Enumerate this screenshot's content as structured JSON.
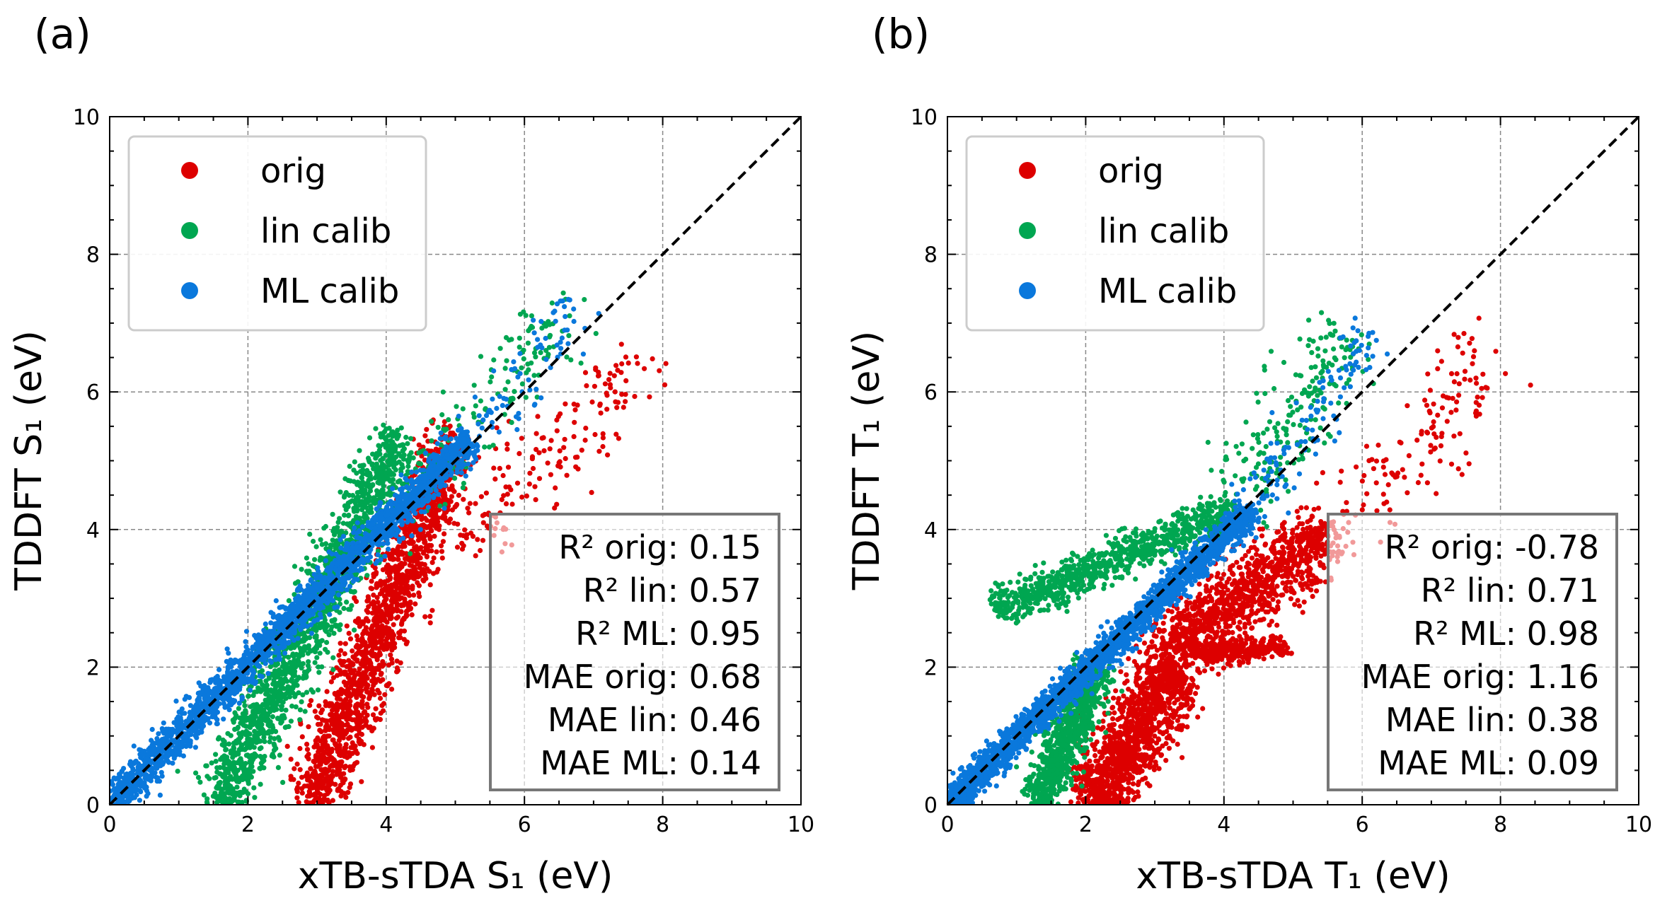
{
  "chart_data": [
    {
      "type": "scatter",
      "panel_label": "(a)",
      "xlabel": "xTB-sTDA S₁ (eV)",
      "ylabel": "TDDFT S₁ (eV)",
      "xlim": [
        0,
        10
      ],
      "ylim": [
        0,
        10
      ],
      "xticks": [
        "0",
        "2",
        "4",
        "6",
        "8",
        "10"
      ],
      "yticks": [
        "0",
        "2",
        "4",
        "6",
        "8",
        "10"
      ],
      "grid": true,
      "legend_placement": "top-left",
      "identity_line": true,
      "series": [
        {
          "name": "orig",
          "color": "#dd0000",
          "clusters": [
            {
              "x0": 2.9,
              "y0": 0.0,
              "x1": 5.0,
              "y1": 5.3,
              "spread": 0.22,
              "count": 1700
            },
            {
              "x0": 5.0,
              "y0": 3.8,
              "x1": 7.8,
              "y1": 6.5,
              "spread": 0.3,
              "count": 170
            }
          ]
        },
        {
          "name": "lin calib",
          "color": "#00a651",
          "clusters": [
            {
              "x0": 1.6,
              "y0": 0.0,
              "x1": 4.2,
              "y1": 5.3,
              "spread": 0.22,
              "count": 1700
            },
            {
              "x0": 4.3,
              "y0": 4.6,
              "x1": 6.8,
              "y1": 7.3,
              "spread": 0.25,
              "count": 150
            }
          ]
        },
        {
          "name": "ML calib",
          "color": "#0a78dc",
          "clusters": [
            {
              "x0": 0.0,
              "y0": 0.0,
              "x1": 5.2,
              "y1": 5.3,
              "spread": 0.12,
              "count": 2300
            },
            {
              "x0": 5.2,
              "y0": 5.2,
              "x1": 6.8,
              "y1": 7.3,
              "spread": 0.2,
              "count": 80
            }
          ]
        }
      ],
      "stats": [
        "R² orig: 0.15",
        "R² lin: 0.57",
        "R² ML: 0.95",
        "MAE orig: 0.68",
        "MAE lin: 0.46",
        "MAE ML: 0.14"
      ]
    },
    {
      "type": "scatter",
      "panel_label": "(b)",
      "xlabel": "xTB-sTDA T₁ (eV)",
      "ylabel": "TDDFT T₁ (eV)",
      "xlim": [
        0,
        10
      ],
      "ylim": [
        0,
        10
      ],
      "xticks": [
        "0",
        "2",
        "4",
        "6",
        "8",
        "10"
      ],
      "yticks": [
        "0",
        "2",
        "4",
        "6",
        "8",
        "10"
      ],
      "grid": true,
      "legend_placement": "top-left",
      "identity_line": true,
      "series": [
        {
          "name": "orig",
          "color": "#dd0000",
          "clusters": [
            {
              "x0": 2.1,
              "y0": 0.0,
              "x1": 3.3,
              "y1": 2.0,
              "spread": 0.25,
              "count": 1400
            },
            {
              "x0": 3.2,
              "y0": 2.2,
              "x1": 5.5,
              "y1": 4.0,
              "spread": 0.25,
              "count": 1100
            },
            {
              "x0": 3.6,
              "y0": 2.2,
              "x1": 4.9,
              "y1": 2.3,
              "spread": 0.1,
              "count": 300
            },
            {
              "x0": 5.5,
              "y0": 3.8,
              "x1": 8.0,
              "y1": 6.5,
              "spread": 0.3,
              "count": 150
            }
          ]
        },
        {
          "name": "lin calib",
          "color": "#00a651",
          "clusters": [
            {
              "x0": 1.3,
              "y0": 0.0,
              "x1": 2.2,
              "y1": 2.0,
              "spread": 0.15,
              "count": 900
            },
            {
              "x0": 0.7,
              "y0": 2.85,
              "x1": 4.2,
              "y1": 4.3,
              "spread": 0.15,
              "count": 900
            },
            {
              "x0": 4.2,
              "y0": 4.4,
              "x1": 5.8,
              "y1": 6.9,
              "spread": 0.3,
              "count": 200
            }
          ]
        },
        {
          "name": "ML calib",
          "color": "#0a78dc",
          "clusters": [
            {
              "x0": 0.0,
              "y0": 0.0,
              "x1": 4.4,
              "y1": 4.3,
              "spread": 0.1,
              "count": 2300
            },
            {
              "x0": 4.4,
              "y0": 4.3,
              "x1": 6.2,
              "y1": 6.9,
              "spread": 0.2,
              "count": 110
            }
          ]
        }
      ],
      "stats": [
        "R² orig: -0.78",
        "R² lin: 0.71",
        "R² ML: 0.98",
        "MAE orig: 1.16",
        "MAE lin: 0.38",
        "MAE ML: 0.09"
      ]
    }
  ]
}
